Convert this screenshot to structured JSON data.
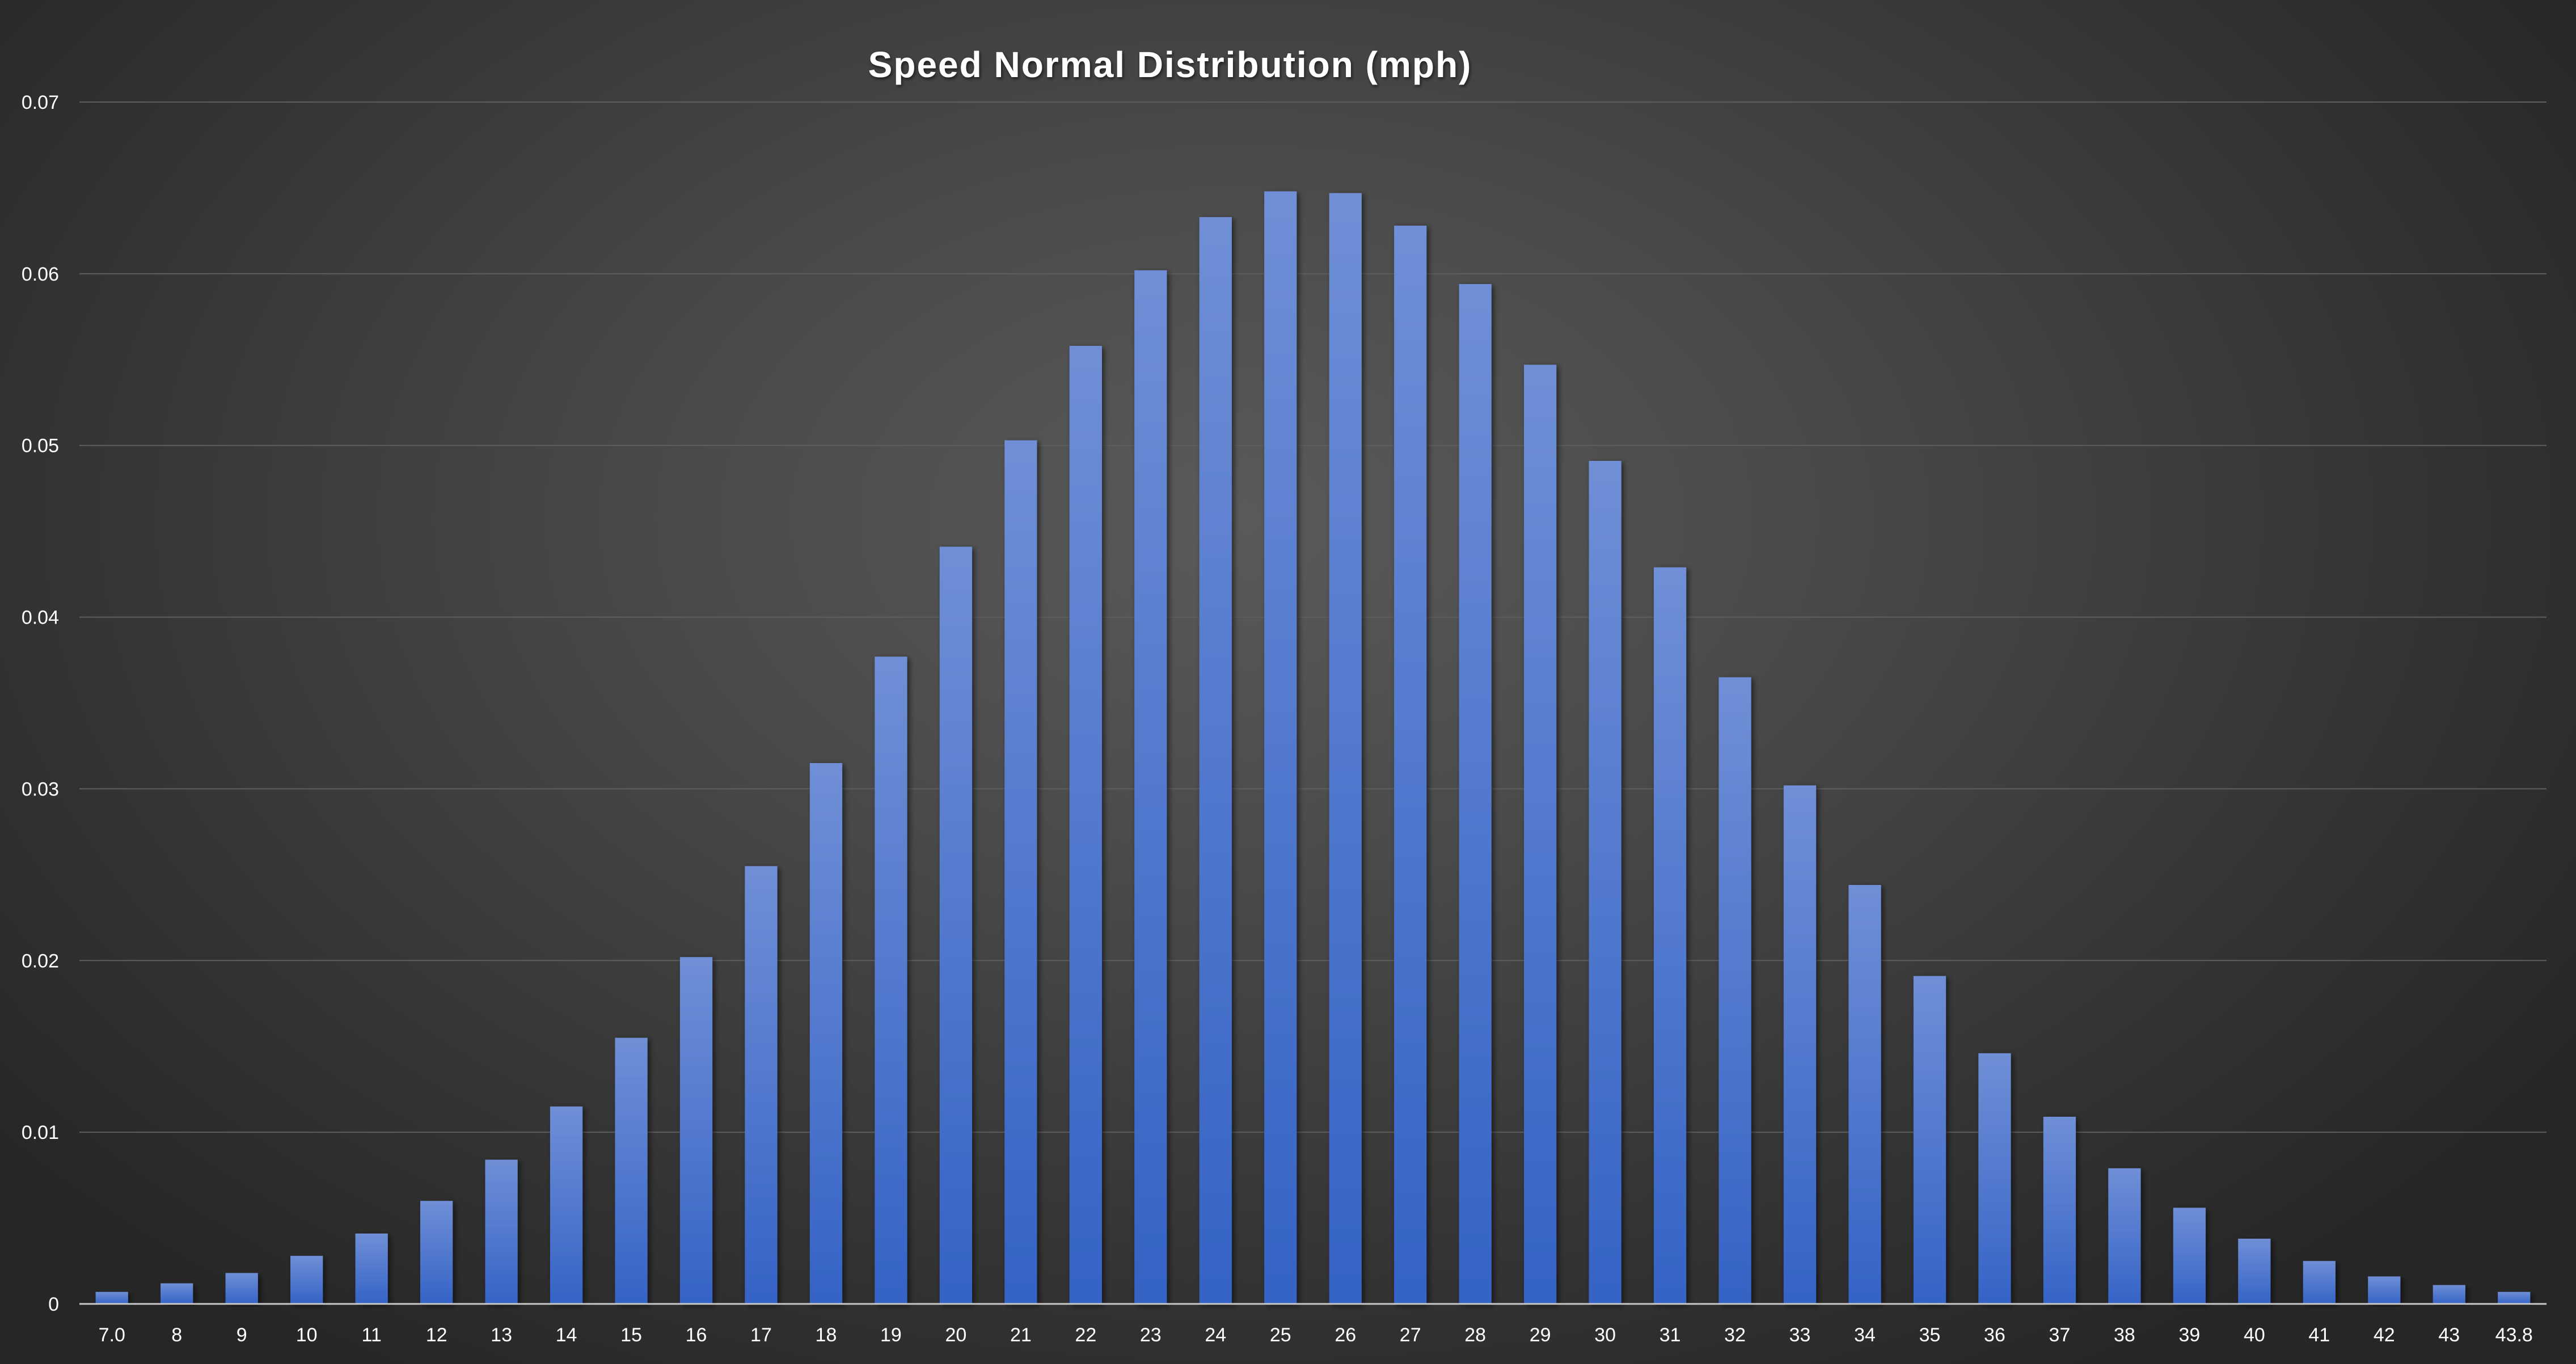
{
  "chart_data": {
    "type": "bar",
    "title": "Speed Normal Distribution (mph)",
    "xlabel": "",
    "ylabel": "",
    "categories": [
      "7.0",
      "8",
      "9",
      "10",
      "11",
      "12",
      "13",
      "14",
      "15",
      "16",
      "17",
      "18",
      "19",
      "20",
      "21",
      "22",
      "23",
      "24",
      "25",
      "26",
      "27",
      "28",
      "29",
      "30",
      "31",
      "32",
      "33",
      "34",
      "35",
      "36",
      "37",
      "38",
      "39",
      "40",
      "41",
      "42",
      "43",
      "43.8"
    ],
    "values": [
      0.0007,
      0.0012,
      0.0018,
      0.0028,
      0.0041,
      0.006,
      0.0084,
      0.0115,
      0.0155,
      0.0202,
      0.0255,
      0.0315,
      0.0377,
      0.0441,
      0.0503,
      0.0558,
      0.0602,
      0.0633,
      0.0648,
      0.0647,
      0.0628,
      0.0594,
      0.0547,
      0.0491,
      0.0429,
      0.0365,
      0.0302,
      0.0244,
      0.0191,
      0.0146,
      0.0109,
      0.0079,
      0.0056,
      0.0038,
      0.0025,
      0.0016,
      0.0011,
      0.0007
    ],
    "y_ticks": [
      "0",
      "0.01",
      "0.02",
      "0.03",
      "0.04",
      "0.05",
      "0.06",
      "0.07"
    ],
    "ylim": [
      0,
      0.07
    ],
    "grid": true,
    "legend": "none",
    "colors": {
      "bar_top": "#6f8fd6",
      "bar_bottom": "#3563c6",
      "gridline": "#5e5e5e",
      "axis_line": "#c8c8c8",
      "text": "#ffffff"
    }
  }
}
